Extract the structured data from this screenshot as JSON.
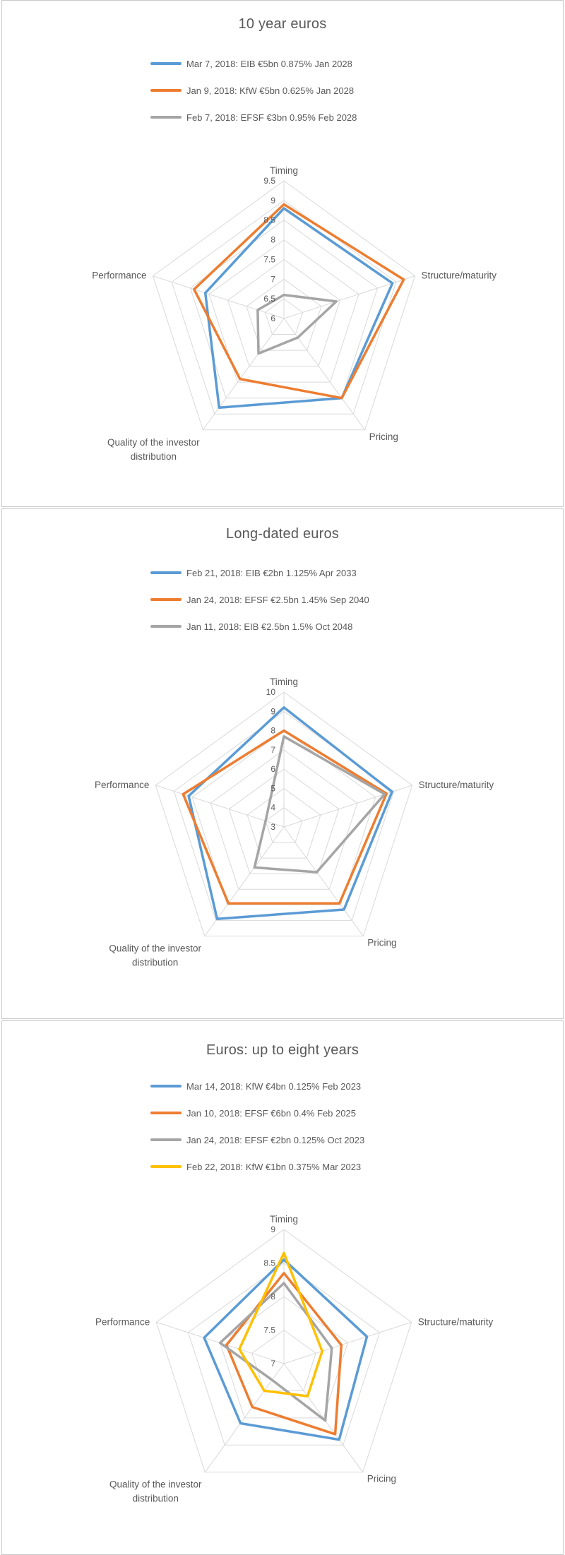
{
  "palette": {
    "blue": "#5B9BD5",
    "orange": "#ED7D31",
    "gray": "#A5A5A5",
    "yellow": "#FFC000",
    "text": "#595959",
    "grid": "#D9D9D9"
  },
  "chart_data": [
    {
      "type": "radar",
      "title": "10 year euros",
      "categories": [
        "Timing",
        "Structure/maturity",
        "Pricing",
        "Quality of the investor distribution",
        "Performance"
      ],
      "axis": {
        "min": 6,
        "max": 9.5,
        "step": 0.5,
        "ticks": [
          "9.5",
          "9",
          "8.5",
          "8",
          "7.5",
          "7",
          "6.5",
          "6"
        ]
      },
      "legend_position": "top",
      "grid": true,
      "series": [
        {
          "name": "Mar 7, 2018: EIB €5bn 0.875% Jan 2028",
          "color": "#5B9BD5",
          "values": [
            8.8,
            8.9,
            8.5,
            8.8,
            8.1
          ]
        },
        {
          "name": "Jan 9, 2018: KfW €5bn 0.625% Jan 2028",
          "color": "#ED7D31",
          "values": [
            8.9,
            9.2,
            8.5,
            7.9,
            8.4
          ]
        },
        {
          "name": "Feb 7, 2018: EFSF €3bn 0.95% Feb 2028",
          "color": "#A5A5A5",
          "values": [
            6.6,
            7.4,
            6.6,
            7.1,
            6.7
          ]
        }
      ]
    },
    {
      "type": "radar",
      "title": "Long-dated euros",
      "categories": [
        "Timing",
        "Structure/maturity",
        "Pricing",
        "Quality of the investor distribution",
        "Performance"
      ],
      "axis": {
        "min": 3,
        "max": 10,
        "step": 1,
        "ticks": [
          "10",
          "9",
          "8",
          "7",
          "6",
          "5",
          "4",
          "3"
        ]
      },
      "legend_position": "top",
      "grid": true,
      "series": [
        {
          "name": "Feb 21, 2018: EIB €2bn 1.125% Apr 2033",
          "color": "#5B9BD5",
          "values": [
            9.2,
            8.9,
            8.3,
            8.9,
            8.2
          ]
        },
        {
          "name": "Jan 24, 2018: EFSF €2.5bn 1.45% Sep 2040",
          "color": "#ED7D31",
          "values": [
            8.0,
            8.6,
            7.9,
            7.9,
            8.5
          ]
        },
        {
          "name": "Jan 11, 2018: EIB €2.5bn 1.5% Oct 2048",
          "color": "#A5A5A5",
          "values": [
            7.7,
            8.5,
            5.9,
            5.6,
            4.0
          ]
        }
      ]
    },
    {
      "type": "radar",
      "title": "Euros: up to eight years",
      "categories": [
        "Timing",
        "Structure/maturity",
        "Pricing",
        "Quality of the investor distribution",
        "Performance"
      ],
      "axis": {
        "min": 7,
        "max": 9,
        "step": 0.5,
        "ticks": [
          "9",
          "8.5",
          "8",
          "7.5",
          "7"
        ]
      },
      "legend_position": "top",
      "grid": true,
      "series": [
        {
          "name": "Mar 14, 2018: KfW €4bn 0.125% Feb 2023",
          "color": "#5B9BD5",
          "values": [
            8.55,
            8.3,
            8.4,
            8.1,
            8.25
          ]
        },
        {
          "name": "Jan 10, 2018: EFSF €6bn 0.4% Feb 2025",
          "color": "#ED7D31",
          "values": [
            8.35,
            7.9,
            8.3,
            7.8,
            7.9
          ]
        },
        {
          "name": "Jan 24, 2018: EFSF €2bn 0.125% Oct 2023",
          "color": "#A5A5A5",
          "values": [
            8.2,
            7.75,
            8.05,
            7.3,
            8.0
          ]
        },
        {
          "name": "Feb 22, 2018: KfW €1bn 0.375% Mar 2023",
          "color": "#FFC000",
          "values": [
            8.65,
            7.6,
            7.6,
            7.5,
            7.7
          ]
        }
      ]
    }
  ]
}
